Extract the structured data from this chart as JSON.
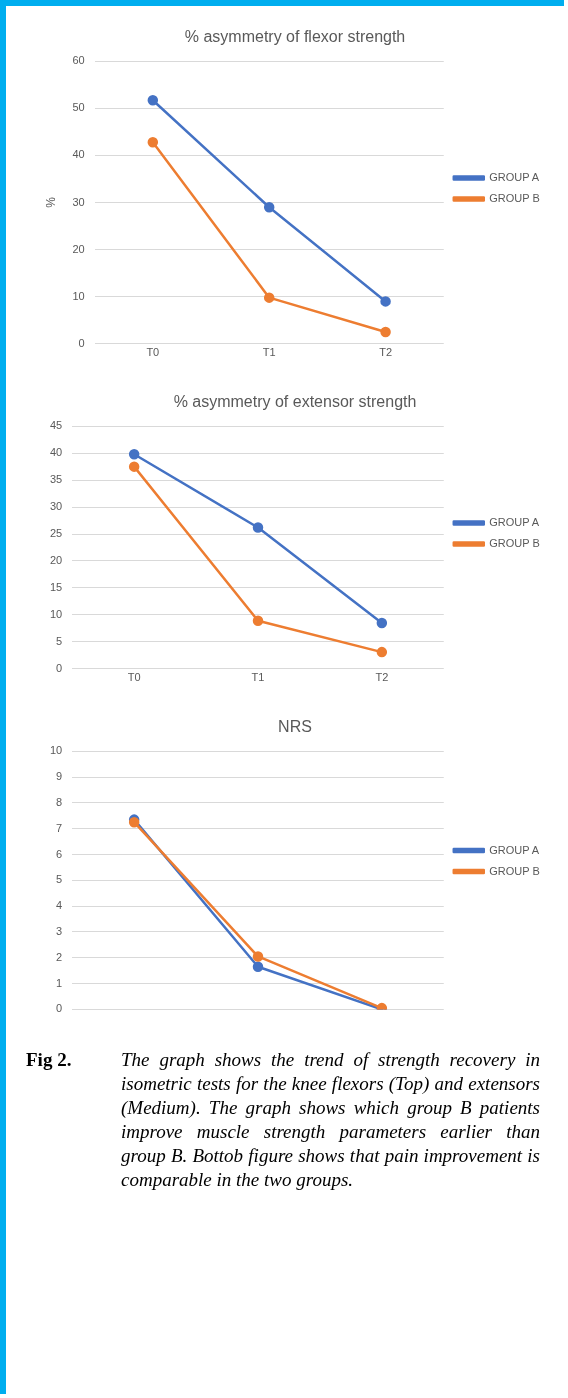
{
  "chart_data": [
    {
      "type": "line",
      "title": "% asymmetry of flexor strength",
      "ylabel": "%",
      "categories": [
        "T0",
        "T1",
        "T2"
      ],
      "series": [
        {
          "name": "GROUP A",
          "color": "#4472c4",
          "values": [
            51.7,
            29,
            9
          ]
        },
        {
          "name": "GROUP B",
          "color": "#ed7d31",
          "values": [
            42.8,
            9.8,
            2.5
          ]
        }
      ],
      "ylim": [
        0,
        60
      ],
      "yticks": [
        0,
        10,
        20,
        30,
        40,
        50,
        60
      ],
      "grid": "y",
      "legend": "right",
      "marker": "circle",
      "line_style": "solid"
    },
    {
      "type": "line",
      "title": "% asymmetry of extensor strength",
      "categories": [
        "T0",
        "T1",
        "T2"
      ],
      "series": [
        {
          "name": "GROUP A",
          "color": "#4472c4",
          "values": [
            39.8,
            26.2,
            8.5
          ]
        },
        {
          "name": "GROUP B",
          "color": "#ed7d31",
          "values": [
            37.5,
            8.9,
            3.1
          ]
        }
      ],
      "ylim": [
        0,
        45
      ],
      "yticks": [
        0,
        5,
        10,
        15,
        20,
        25,
        30,
        35,
        40,
        45
      ],
      "grid": "y",
      "legend": "right",
      "marker": "circle",
      "line_style": "solid"
    },
    {
      "type": "line",
      "title": "NRS",
      "categories": [
        null,
        null,
        null
      ],
      "tick_labels": "y",
      "series": [
        {
          "name": "GROUP A",
          "color": "#4472c4",
          "values": [
            7.35,
            1.65,
            0
          ]
        },
        {
          "name": "GROUP B",
          "color": "#ed7d31",
          "values": [
            7.25,
            2.05,
            0.05
          ]
        }
      ],
      "ylim": [
        0,
        10
      ],
      "yticks": [
        0,
        1,
        2,
        3,
        4,
        5,
        6,
        7,
        8,
        9,
        10
      ],
      "grid": "y",
      "legend": "right",
      "marker": "circle",
      "line_style": "solid",
      "annotations": [
        "Fig 2.",
        "The graph shows the trend of strength recovery in isometric tests for the knee flexors (Top) and extensors (Medium). The graph shows which group B patients improve muscle strength parameters earlier than group B. Bottob figure shows that pain improvement is comparable in the two groups."
      ]
    }
  ]
}
